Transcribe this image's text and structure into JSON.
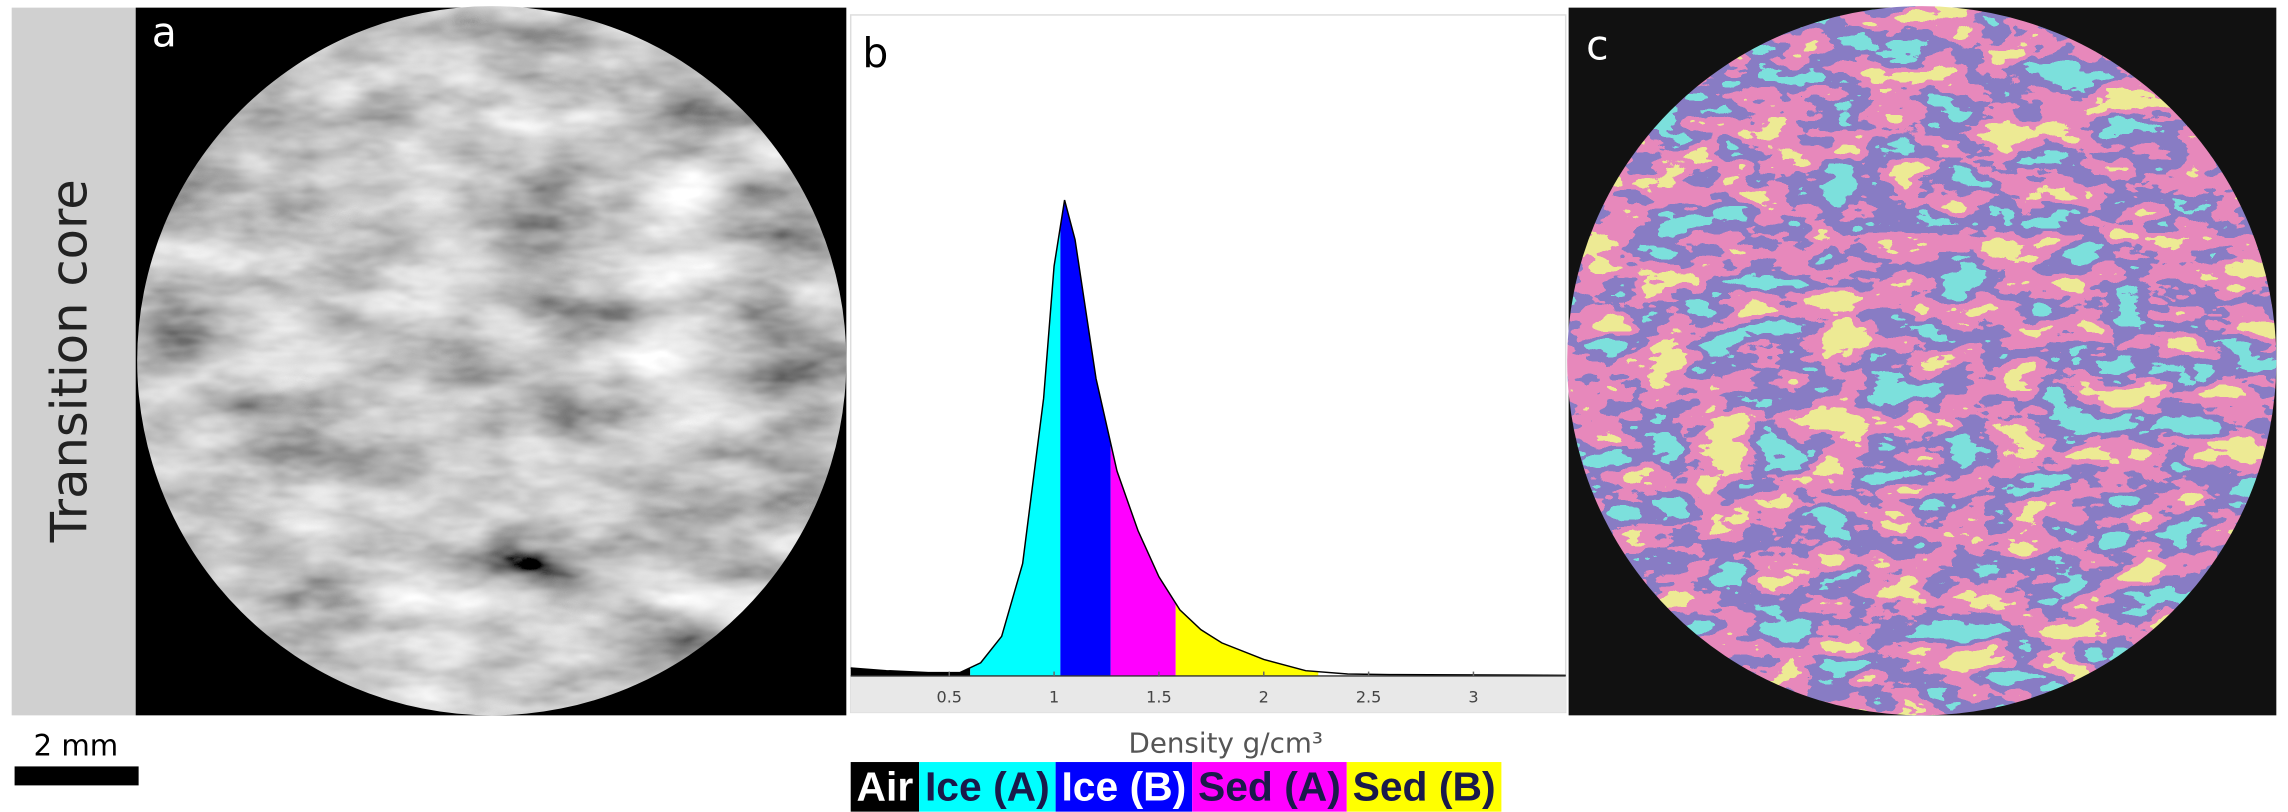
{
  "side_label": "Transition core",
  "panels": {
    "a": "a",
    "b": "b",
    "c": "c"
  },
  "scale_bar": "2 mm",
  "chart_data": {
    "type": "area",
    "x_label": "Density g/cm³",
    "x": [
      0.03,
      0.2,
      0.4,
      0.55,
      0.65,
      0.75,
      0.85,
      0.95,
      1.0,
      1.05,
      1.1,
      1.2,
      1.3,
      1.4,
      1.5,
      1.6,
      1.7,
      1.8,
      2.0,
      2.2,
      2.4,
      2.6,
      3.44
    ],
    "values": [
      0.012,
      0.008,
      0.005,
      0.005,
      0.02,
      0.06,
      0.17,
      0.42,
      0.62,
      0.72,
      0.66,
      0.45,
      0.31,
      0.22,
      0.15,
      0.1,
      0.07,
      0.05,
      0.025,
      0.008,
      0.003,
      0.002,
      0.001
    ],
    "xlim": [
      0.03,
      3.44
    ],
    "ylim": [
      0,
      1
    ],
    "xticks": [
      0.5,
      1,
      1.5,
      2,
      2.5,
      3
    ],
    "line_color": "#000000",
    "classes": [
      {
        "name": "Air",
        "color": "#000000",
        "text_color": "#ffffff",
        "range": [
          0.03,
          0.6
        ]
      },
      {
        "name": "Ice (A)",
        "color": "#00ffff",
        "text_color": "#1a1a4a",
        "range": [
          0.6,
          1.03
        ]
      },
      {
        "name": "Ice (B)",
        "color": "#0000ff",
        "text_color": "#ffffff",
        "range": [
          1.03,
          1.27
        ]
      },
      {
        "name": "Sed (A)",
        "color": "#ff00ff",
        "text_color": "#1a1a4a",
        "range": [
          1.27,
          1.58
        ]
      },
      {
        "name": "Sed (B)",
        "color": "#ffff00",
        "text_color": "#1a1a4a",
        "range": [
          1.58,
          2.26
        ]
      }
    ]
  }
}
